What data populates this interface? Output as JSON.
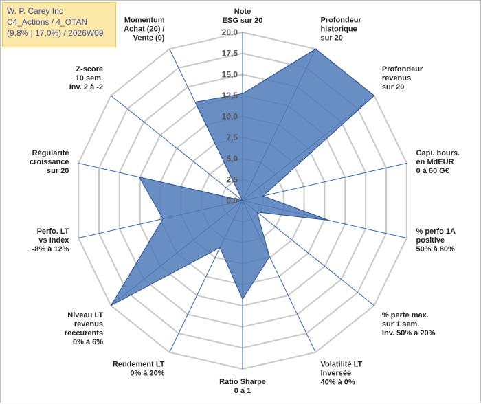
{
  "title_lines": [
    "W. P. Carey Inc",
    "C4_Actions / 4_OTAN",
    "(9,8% | 17,0%) / 2026W09"
  ],
  "colors": {
    "fill": "#4f7ab8",
    "stroke": "#2e4f8a",
    "grid": "#c8c8c8",
    "spoke": "#2f62b0"
  },
  "chart_data": {
    "type": "radar",
    "title": "W. P. Carey Inc",
    "rmin": 0,
    "rmax": 20,
    "tick_labels": [
      "0,0",
      "2,5",
      "5,0",
      "7,5",
      "10,0",
      "12,5",
      "15,0",
      "17,5",
      "20,0"
    ],
    "axes": [
      {
        "label": [
          "Note",
          "ESG sur 20"
        ],
        "value": 12.7
      },
      {
        "label": [
          "Profondeur",
          "historique",
          "sur 20"
        ],
        "value": 20
      },
      {
        "label": [
          "Profondeur",
          "revenus",
          "sur 20"
        ],
        "value": 20
      },
      {
        "label": [
          "Capi. bours.",
          "en MdEUR",
          "0 à 60 G€"
        ],
        "value": 2.5
      },
      {
        "label": [
          "% perfo 1A",
          "positive",
          "50% à 80%"
        ],
        "value": 10.5
      },
      {
        "label": [
          "% perte max.",
          "sur 1 sem.",
          "Inv. 50% à 20%"
        ],
        "value": 2.2
      },
      {
        "label": [
          "Volatilité LT",
          "Inversée",
          "40% à 0%"
        ],
        "value": 7.4
      },
      {
        "label": [
          "Ratio Sharpe",
          "0 à 1"
        ],
        "value": 11.7
      },
      {
        "label": [
          "Rendement LT",
          "0% à 20%"
        ],
        "value": 6.2
      },
      {
        "label": [
          "Niveau LT",
          "revenus",
          "reccurents",
          "0% à 6%"
        ],
        "value": 20
      },
      {
        "label": [
          "Perfo. LT",
          "vs Index",
          "-8% à 12%"
        ],
        "value": 9.7
      },
      {
        "label": [
          "Régularité",
          "croissance",
          "sur 20"
        ],
        "value": 12.6
      },
      {
        "label": [
          "Z-score",
          "10 sem.",
          "Inv. 2 à -2"
        ],
        "value": 0
      },
      {
        "label": [
          "Momentum",
          "Achat (20) /",
          "Vente (0)"
        ],
        "value": 13.0
      }
    ]
  }
}
